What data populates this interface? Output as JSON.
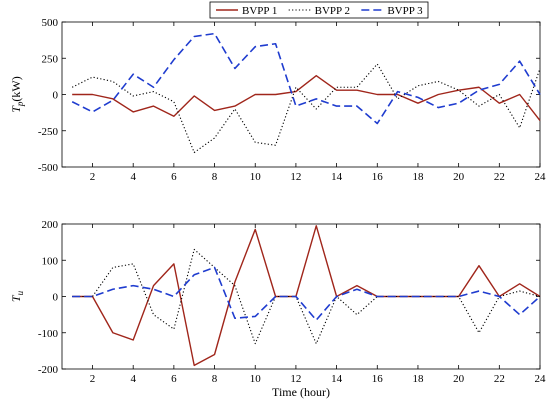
{
  "chart_data": [
    {
      "type": "line",
      "ylabel_main": "T",
      "ylabel_sub": "p",
      "ylabel_unit": "(kW)",
      "xlabel": "",
      "xlim": [
        0.5,
        24
      ],
      "ylim": [
        -500,
        500
      ],
      "yticks": [
        -500,
        -250,
        0,
        250,
        500
      ],
      "xticks": [
        2,
        4,
        6,
        8,
        10,
        12,
        14,
        16,
        18,
        20,
        22,
        24
      ],
      "x": [
        1,
        2,
        3,
        4,
        5,
        6,
        7,
        8,
        9,
        10,
        11,
        12,
        13,
        14,
        15,
        16,
        17,
        18,
        19,
        20,
        21,
        22,
        23,
        24
      ],
      "legend": {
        "placement": "top-center",
        "entries": [
          "BVPP 1",
          "BVPP 2",
          "BVPP 3"
        ]
      },
      "series": [
        {
          "name": "BVPP 1",
          "style": "solid",
          "color": "#A0261B",
          "values": [
            0,
            0,
            -30,
            -120,
            -80,
            -150,
            -10,
            -110,
            -80,
            0,
            0,
            20,
            130,
            30,
            30,
            0,
            0,
            -60,
            0,
            30,
            50,
            -60,
            0,
            -180
          ]
        },
        {
          "name": "BVPP 2",
          "style": "dotted",
          "color": "#000000",
          "values": [
            50,
            120,
            90,
            -10,
            20,
            -50,
            -400,
            -300,
            -100,
            -330,
            -350,
            50,
            -100,
            50,
            50,
            210,
            -30,
            60,
            90,
            30,
            -80,
            0,
            -230,
            180
          ]
        },
        {
          "name": "BVPP 3",
          "style": "dashed",
          "color": "#1F3CCF",
          "values": [
            -50,
            -120,
            -40,
            140,
            50,
            240,
            400,
            420,
            180,
            330,
            350,
            -80,
            -30,
            -80,
            -80,
            -200,
            20,
            -20,
            -90,
            -60,
            30,
            70,
            230,
            0
          ]
        }
      ]
    },
    {
      "type": "line",
      "ylabel_main": "T",
      "ylabel_sub": "u",
      "xlabel": "Time (hour)",
      "xlim": [
        0.5,
        24
      ],
      "ylim": [
        -200,
        200
      ],
      "yticks": [
        -200,
        -100,
        0,
        100,
        200
      ],
      "xticks": [
        2,
        4,
        6,
        8,
        10,
        12,
        14,
        16,
        18,
        20,
        22,
        24
      ],
      "x": [
        1,
        2,
        3,
        4,
        5,
        6,
        7,
        8,
        9,
        10,
        11,
        12,
        13,
        14,
        15,
        16,
        17,
        18,
        19,
        20,
        21,
        22,
        23,
        24
      ],
      "series": [
        {
          "name": "BVPP 1",
          "style": "solid",
          "color": "#A0261B",
          "values": [
            0,
            0,
            -100,
            -120,
            30,
            90,
            -190,
            -160,
            40,
            185,
            0,
            0,
            195,
            0,
            30,
            0,
            0,
            0,
            0,
            0,
            85,
            0,
            35,
            0
          ]
        },
        {
          "name": "BVPP 2",
          "style": "dotted",
          "color": "#000000",
          "values": [
            0,
            0,
            80,
            90,
            -50,
            -90,
            130,
            80,
            30,
            -130,
            0,
            0,
            -130,
            0,
            -50,
            0,
            0,
            0,
            0,
            0,
            -100,
            0,
            15,
            0
          ]
        },
        {
          "name": "BVPP 3",
          "style": "dashed",
          "color": "#1F3CCF",
          "values": [
            0,
            0,
            20,
            30,
            20,
            0,
            60,
            80,
            -60,
            -55,
            0,
            0,
            -65,
            0,
            20,
            0,
            0,
            0,
            0,
            0,
            15,
            0,
            -50,
            0
          ]
        }
      ]
    }
  ]
}
